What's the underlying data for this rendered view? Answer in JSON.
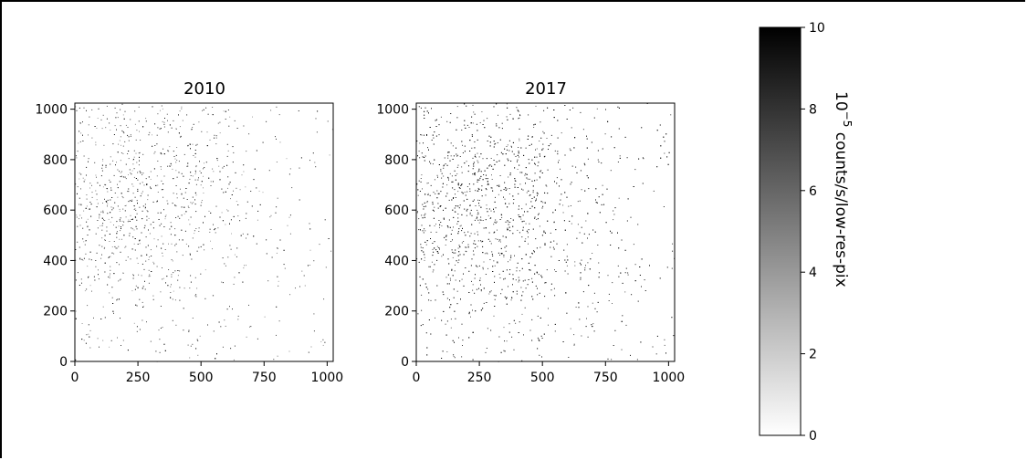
{
  "chart_data": [
    {
      "type": "heatmap",
      "title": "2010",
      "xticks": [
        "0",
        "250",
        "500",
        "750",
        "1000"
      ],
      "yticks": [
        "0",
        "200",
        "400",
        "600",
        "800",
        "1000"
      ],
      "xlim": [
        0,
        1024
      ],
      "ylim": [
        0,
        1024
      ],
      "density": {
        "center": [
          220,
          650
        ],
        "peak_value": 3.5,
        "background_value": 0.3
      }
    },
    {
      "type": "heatmap",
      "title": "2017",
      "xticks": [
        "0",
        "250",
        "500",
        "750",
        "1000"
      ],
      "yticks": [
        "0",
        "200",
        "400",
        "600",
        "800",
        "1000"
      ],
      "xlim": [
        0,
        1024
      ],
      "ylim": [
        0,
        1024
      ],
      "density": {
        "center": [
          220,
          600
        ],
        "peak_value": 7.5,
        "background_value": 0.6
      }
    }
  ],
  "colorbar": {
    "label_base": "10",
    "label_exponent": "−5",
    "label_rest": " counts/s/low-res-pix",
    "range": [
      0,
      10
    ],
    "ticks": [
      "0",
      "2",
      "4",
      "6",
      "8",
      "10"
    ],
    "colormap": "gray_r"
  }
}
